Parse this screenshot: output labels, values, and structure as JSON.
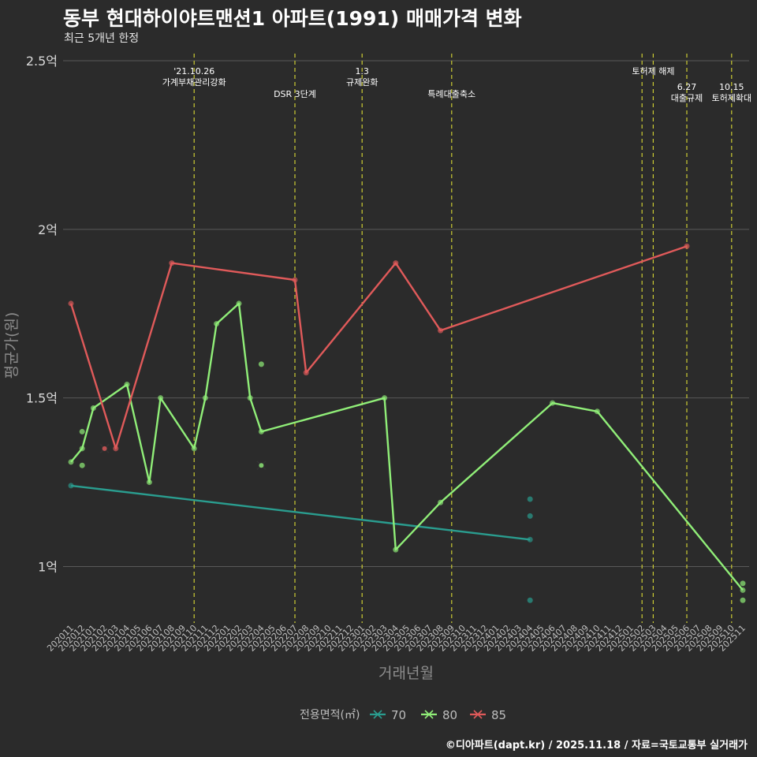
{
  "title": "동부 현대하이야트맨션1 아파트(1991) 매매가격 변화",
  "subtitle": "최근 5개년 한정",
  "caption": "©디아파트(dapt.kr) / 2025.11.18 / 자료=국토교통부 실거래가",
  "chart_data": {
    "type": "line",
    "xlabel": "거래년월",
    "ylabel": "평균가(원)",
    "ylim": [
      0.85,
      2.5
    ],
    "y_ticks": [
      {
        "value": 1.0,
        "label": "1억"
      },
      {
        "value": 1.5,
        "label": "1.5억"
      },
      {
        "value": 2.0,
        "label": "2억"
      },
      {
        "value": 2.5,
        "label": "2.5억"
      }
    ],
    "categories": [
      "202011",
      "202012",
      "202101",
      "202102",
      "202103",
      "202104",
      "202105",
      "202106",
      "202107",
      "202108",
      "202109",
      "202110",
      "202111",
      "202112",
      "202201",
      "202202",
      "202203",
      "202204",
      "202205",
      "202206",
      "202207",
      "202208",
      "202209",
      "202210",
      "202211",
      "202212",
      "202301",
      "202302",
      "202303",
      "202304",
      "202305",
      "202306",
      "202307",
      "202308",
      "202309",
      "202310",
      "202311",
      "202312",
      "202401",
      "202402",
      "202403",
      "202404",
      "202405",
      "202406",
      "202407",
      "202408",
      "202409",
      "202410",
      "202411",
      "202412",
      "202501",
      "202502",
      "202503",
      "202504",
      "202505",
      "202506",
      "202507",
      "202508",
      "202509",
      "202510",
      "202511"
    ],
    "series": [
      {
        "name": "70",
        "color": "#2a9d8f",
        "points": [
          [
            "202011",
            1.24
          ],
          [
            "202404",
            1.08
          ]
        ]
      },
      {
        "name": "80",
        "color": "#90ee78",
        "points": [
          [
            "202011",
            1.31
          ],
          [
            "202012",
            1.35
          ],
          [
            "202101",
            1.47
          ],
          [
            "202104",
            1.54
          ],
          [
            "202106",
            1.25
          ],
          [
            "202107",
            1.5
          ],
          [
            "202110",
            1.35
          ],
          [
            "202111",
            1.5
          ],
          [
            "202112",
            1.72
          ],
          [
            "202202",
            1.78
          ],
          [
            "202203",
            1.5
          ],
          [
            "202204",
            1.4
          ],
          [
            "202303",
            1.5
          ],
          [
            "202304",
            1.05
          ],
          [
            "202308",
            1.19
          ],
          [
            "202406",
            1.485
          ],
          [
            "202410",
            1.46
          ],
          [
            "202511",
            0.93
          ]
        ]
      },
      {
        "name": "85",
        "color": "#e05a5a",
        "points": [
          [
            "202011",
            1.78
          ],
          [
            "202103",
            1.35
          ],
          [
            "202108",
            1.9
          ],
          [
            "202207",
            1.85
          ],
          [
            "202208",
            1.575
          ],
          [
            "202304",
            1.9
          ],
          [
            "202308",
            1.7
          ],
          [
            "202506",
            1.95
          ]
        ]
      }
    ],
    "scatter": [
      {
        "series": "70",
        "x": "202404",
        "y": 1.2
      },
      {
        "series": "70",
        "x": "202404",
        "y": 1.15
      },
      {
        "series": "70",
        "x": "202404",
        "y": 0.9
      },
      {
        "series": "80",
        "x": "202012",
        "y": 1.4
      },
      {
        "series": "80",
        "x": "202012",
        "y": 1.3
      },
      {
        "series": "80",
        "x": "202204",
        "y": 1.6
      },
      {
        "series": "80",
        "x": "202511",
        "y": 0.95
      },
      {
        "series": "80",
        "x": "202511",
        "y": 0.9
      }
    ],
    "cross_markers": [
      {
        "series": "85",
        "x": "202102",
        "y": 1.35
      },
      {
        "series": "80",
        "x": "202204",
        "y": 1.3
      }
    ],
    "events": [
      {
        "x": "202110",
        "lines": [
          "'21.10.26",
          "가계부채관리강화"
        ],
        "row": 0
      },
      {
        "x": "202207",
        "lines": [
          "DSR 3단계"
        ],
        "row": 1
      },
      {
        "x": "202301",
        "lines": [
          "1.3",
          "규제완화"
        ],
        "row": 0
      },
      {
        "x": "202309",
        "lines": [
          "특례대출축소"
        ],
        "row": 1
      },
      {
        "x": "202502",
        "lines": [],
        "row": 0
      },
      {
        "x": "202503",
        "lines": [
          "토허제 해제"
        ],
        "row": 0
      },
      {
        "x": "202506",
        "lines": [
          "6.27",
          "대출규제"
        ],
        "row": 2
      },
      {
        "x": "202510",
        "lines": [
          "10.15",
          "토허제확대"
        ],
        "row": 2
      }
    ],
    "legend": {
      "title": "전용면적(㎡)",
      "position": "bottom",
      "items": [
        "70",
        "80",
        "85"
      ]
    }
  }
}
